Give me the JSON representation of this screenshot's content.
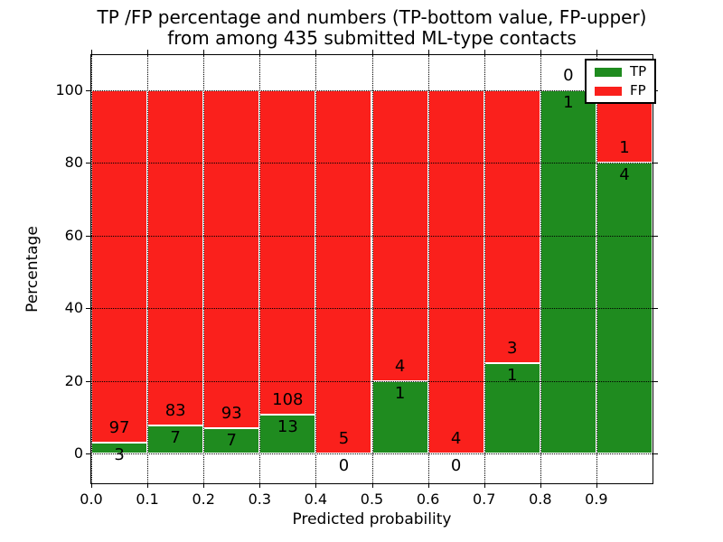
{
  "title": {
    "line1": "TP /FP percentage and numbers (TP-bottom value, FP-upper)",
    "line2": "from among 435 submitted ML-type contacts"
  },
  "x_axis": {
    "label": "Predicted probability",
    "tick_labels": [
      "0.0",
      "0.1",
      "0.2",
      "0.3",
      "0.4",
      "0.5",
      "0.6",
      "0.7",
      "0.8",
      "0.9"
    ]
  },
  "y_axis": {
    "label": "Percentage",
    "tick_labels": [
      "0",
      "20",
      "40",
      "60",
      "80",
      "100"
    ],
    "tick_values": [
      0,
      20,
      40,
      60,
      80,
      100
    ]
  },
  "legend": {
    "items": [
      {
        "label": "TP",
        "color_key": "tp"
      },
      {
        "label": "FP",
        "color_key": "fp"
      }
    ],
    "position": "upper right"
  },
  "colors": {
    "tp": "#1f8b1f",
    "fp": "#fa201c",
    "axis": "#000000",
    "grid": "#000000",
    "background": "#ffffff"
  },
  "chart_data": {
    "type": "bar",
    "stacked": true,
    "normalized_to_percent": true,
    "title": "TP /FP percentage and numbers (TP-bottom value, FP-upper) from among 435 submitted ML-type contacts",
    "xlabel": "Predicted probability",
    "ylabel": "Percentage",
    "total_contacts": 435,
    "bin_edges": [
      0.0,
      0.1,
      0.2,
      0.3,
      0.4,
      0.5,
      0.6,
      0.7,
      0.8,
      0.9,
      1.0
    ],
    "categories": [
      "0.0-0.1",
      "0.1-0.2",
      "0.2-0.3",
      "0.3-0.4",
      "0.4-0.5",
      "0.5-0.6",
      "0.6-0.7",
      "0.7-0.8",
      "0.8-0.9",
      "0.9-1.0"
    ],
    "series": [
      {
        "name": "TP",
        "color_key": "tp",
        "counts": [
          3,
          7,
          7,
          13,
          0,
          1,
          0,
          1,
          1,
          4
        ]
      },
      {
        "name": "FP",
        "color_key": "fp",
        "counts": [
          97,
          83,
          93,
          108,
          5,
          4,
          4,
          3,
          0,
          1
        ]
      }
    ],
    "tp_percent_heights": [
      3.0,
      7.78,
      7.0,
      10.74,
      0.0,
      20.0,
      0.0,
      25.0,
      100.0,
      80.0
    ],
    "ylim": [
      -8,
      110
    ],
    "xlim": [
      0.0,
      1.0
    ],
    "grid": "dotted",
    "legend_position": "upper right"
  }
}
